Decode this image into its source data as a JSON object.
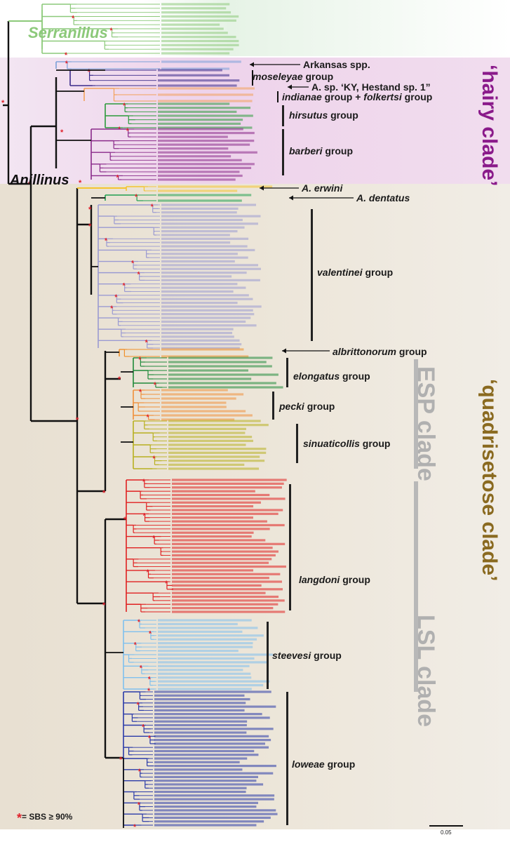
{
  "clades": {
    "serranillus": "Serranillus",
    "anillinus": "Anillinus",
    "hairy": "‘hairy clade’",
    "quadrisetose": "‘quadrisetose clade’",
    "esp": "ESP clade",
    "lsl": "LSL clade"
  },
  "arrows": {
    "arkansas": "Arkansas spp.",
    "a_sp_ky": "A. sp. ‘KY, Hestand sp. 1”",
    "a_erwini": "A. erwini",
    "a_dentatus": "A. dentatus"
  },
  "groups": {
    "moseleyae": {
      "italic": "moseleyae",
      "rest": " group"
    },
    "indianae": {
      "italic": "indianae",
      "mid": " group + ",
      "italic2": "folkertsi",
      "rest": " group"
    },
    "hirsutus": {
      "italic": "hirsutus",
      "rest": " group"
    },
    "barberi": {
      "italic": "barberi",
      "rest": " group"
    },
    "valentinei": {
      "italic": "valentinei",
      "rest": " group"
    },
    "albrittonorum": {
      "italic": "albrittonorum",
      "rest": " group"
    },
    "elongatus": {
      "italic": "elongatus",
      "rest": " group"
    },
    "pecki": {
      "italic": "pecki",
      "rest": " group"
    },
    "sinuaticollis": {
      "italic": "sinuaticollis",
      "rest": " group"
    },
    "langdoni": {
      "italic": "langdoni",
      "rest": " group"
    },
    "steevesi": {
      "italic": "steevesi",
      "rest": " group"
    },
    "loweae": {
      "italic": "loweae",
      "rest": " group"
    }
  },
  "legend": {
    "star": "*",
    "text": "= SBS ≥ 90%"
  },
  "scale": {
    "label": "0.05"
  },
  "colors": {
    "serranillus": "#8cc97a",
    "hairy_bg": "#e9c8e6",
    "quad_bg": "#ddd3c2",
    "backbone": "#111111",
    "star": "#e0202a",
    "arkansas": "#7aa0d8",
    "moseleyae": "#3a2a8a",
    "indianae": "#f3a15a",
    "hirsutus": "#2a9a3a",
    "barberi": "#8a2a8a",
    "erwini": "#f5c430",
    "dentatus": "#20a050",
    "valentinei": "#9a9ad2",
    "albrittonorum": "#f0902a",
    "elongatus": "#1f8a3a",
    "pecki": "#f0903a",
    "sinuaticollis": "#b8b020",
    "langdoni": "#e02020",
    "steevesi": "#7fc0ee",
    "loweae": "#2a3aa8",
    "grey_bar": "#b8b8b8",
    "clade_label_grey": "#b0b0b0",
    "hairy_label": "#8a1a8a",
    "quad_label": "#8a6a20"
  }
}
